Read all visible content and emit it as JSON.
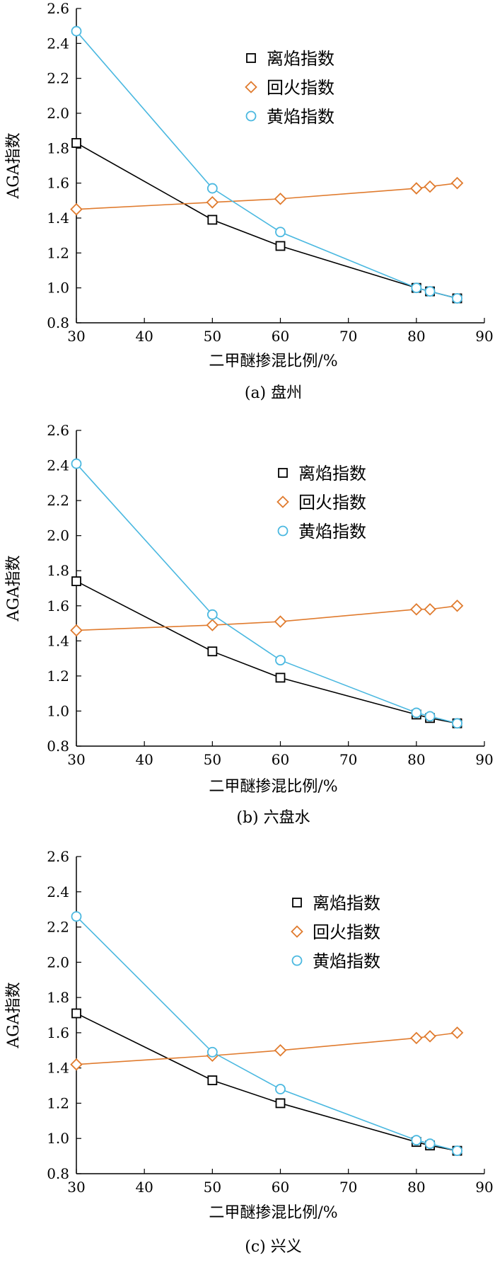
{
  "chart_data": [
    {
      "type": "line",
      "caption": "(a) 盘州",
      "xlabel": "二甲醚掺混比例/%",
      "ylabel": "AGA指数",
      "xlim": [
        30,
        90
      ],
      "ylim": [
        0.8,
        2.6
      ],
      "xticks": [
        "30",
        "40",
        "50",
        "60",
        "70",
        "80",
        "90"
      ],
      "yticks": [
        "0.8",
        "1.0",
        "1.2",
        "1.4",
        "1.6",
        "1.8",
        "2.0",
        "2.2",
        "2.4",
        "2.6"
      ],
      "legend_position": "top-center",
      "grid": false,
      "series": [
        {
          "name": "离焰指数",
          "marker": "square",
          "color": "#000000",
          "x": [
            30,
            50,
            60,
            80,
            82,
            86
          ],
          "y": [
            1.83,
            1.39,
            1.24,
            1.0,
            0.98,
            0.94
          ]
        },
        {
          "name": "回火指数",
          "marker": "diamond",
          "color": "#e07b2e",
          "x": [
            30,
            50,
            60,
            80,
            82,
            86
          ],
          "y": [
            1.45,
            1.49,
            1.51,
            1.57,
            1.58,
            1.6
          ]
        },
        {
          "name": "黄焰指数",
          "marker": "circle",
          "color": "#4ab8e0",
          "x": [
            30,
            50,
            60,
            80,
            82,
            86
          ],
          "y": [
            2.47,
            1.57,
            1.32,
            1.0,
            0.98,
            0.94
          ]
        }
      ]
    },
    {
      "type": "line",
      "caption": "(b) 六盘水",
      "xlabel": "二甲醚掺混比例/%",
      "ylabel": "AGA指数",
      "xlim": [
        30,
        90
      ],
      "ylim": [
        0.8,
        2.6
      ],
      "xticks": [
        "30",
        "40",
        "50",
        "60",
        "70",
        "80",
        "90"
      ],
      "yticks": [
        "0.8",
        "1.0",
        "1.2",
        "1.4",
        "1.6",
        "1.8",
        "2.0",
        "2.2",
        "2.4",
        "2.6"
      ],
      "legend_position": "top-center",
      "grid": false,
      "series": [
        {
          "name": "离焰指数",
          "marker": "square",
          "color": "#000000",
          "x": [
            30,
            50,
            60,
            80,
            82,
            86
          ],
          "y": [
            1.74,
            1.34,
            1.19,
            0.98,
            0.96,
            0.93
          ]
        },
        {
          "name": "回火指数",
          "marker": "diamond",
          "color": "#e07b2e",
          "x": [
            30,
            50,
            60,
            80,
            82,
            86
          ],
          "y": [
            1.46,
            1.49,
            1.51,
            1.58,
            1.58,
            1.6
          ]
        },
        {
          "name": "黄焰指数",
          "marker": "circle",
          "color": "#4ab8e0",
          "x": [
            30,
            50,
            60,
            80,
            82,
            86
          ],
          "y": [
            2.41,
            1.55,
            1.29,
            0.99,
            0.97,
            0.93
          ]
        }
      ]
    },
    {
      "type": "line",
      "caption": "(c) 兴义",
      "xlabel": "二甲醚掺混比例/%",
      "ylabel": "AGA指数",
      "xlim": [
        30,
        90
      ],
      "ylim": [
        0.8,
        2.6
      ],
      "xticks": [
        "30",
        "40",
        "50",
        "60",
        "70",
        "80",
        "90"
      ],
      "yticks": [
        "0.8",
        "1.0",
        "1.2",
        "1.4",
        "1.6",
        "1.8",
        "2.0",
        "2.2",
        "2.4",
        "2.6"
      ],
      "legend_position": "top-center",
      "grid": false,
      "series": [
        {
          "name": "离焰指数",
          "marker": "square",
          "color": "#000000",
          "x": [
            30,
            50,
            60,
            80,
            82,
            86
          ],
          "y": [
            1.71,
            1.33,
            1.2,
            0.98,
            0.96,
            0.93
          ]
        },
        {
          "name": "回火指数",
          "marker": "diamond",
          "color": "#e07b2e",
          "x": [
            30,
            50,
            60,
            80,
            82,
            86
          ],
          "y": [
            1.42,
            1.47,
            1.5,
            1.57,
            1.58,
            1.6
          ]
        },
        {
          "name": "黄焰指数",
          "marker": "circle",
          "color": "#4ab8e0",
          "x": [
            30,
            50,
            60,
            80,
            82,
            86
          ],
          "y": [
            2.26,
            1.49,
            1.28,
            0.99,
            0.97,
            0.93
          ]
        }
      ]
    }
  ]
}
